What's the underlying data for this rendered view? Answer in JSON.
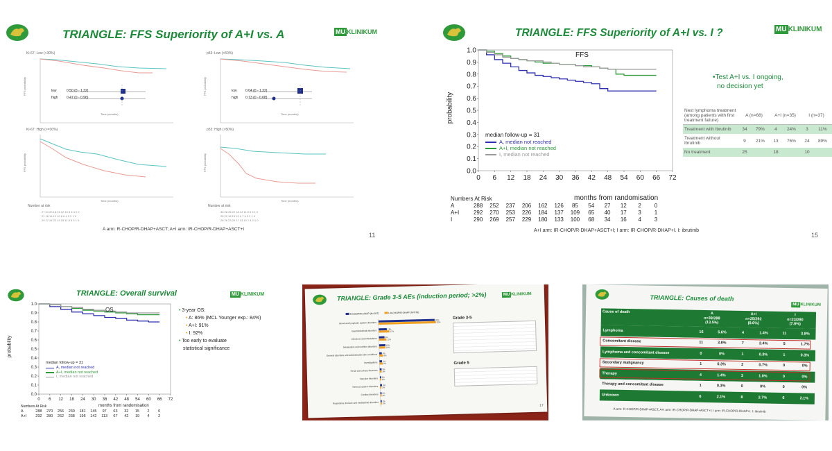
{
  "colors": {
    "green": "#2f9a3a",
    "title_green": "#1d8a3a",
    "blue": "#2d2fb0",
    "grey": "#9a9a9a",
    "teal": "#5bc4c0",
    "salmon": "#e89a94",
    "navy": "#1f2f8a",
    "orange": "#f0a020",
    "red_box": "#c0302a",
    "table_green": "#1e7a32"
  },
  "icons": {
    "logo": "lion-crest-icon",
    "klinikum": "mu-klinikum-logo"
  },
  "klinikum_logo": {
    "mu": "MU",
    "name": "KLINIKUM"
  },
  "slide1": {
    "title_italic": "TRIANGLE:",
    "title_rest": " FFS Superiority of A+I vs. A",
    "panel_tl": "Ki-67: Low (<30%)",
    "panel_tr": "p53: Low (<50%)",
    "panel_bl": "Ki-67: High (>=30%)",
    "panel_br": "p53: High (>50%)",
    "forest_rows": [
      {
        "label": "low",
        "value": "0.50 (0 - 1.32)"
      },
      {
        "label": "high",
        "value": "0.47 (0 - 0.96)"
      }
    ],
    "forest_rows_r": [
      {
        "label": "low",
        "value": "0.04 (0 - 1.32)"
      },
      {
        "label": "high",
        "value": "0.13 (0 - 0.68)"
      }
    ],
    "ylabel": "FFS probability",
    "xlabel": "Time (months)",
    "at_risk": "Number at risk",
    "footnote": "A arm: R-CHOP/R-DHAP+ASCT; A+I arm: IR-CHOP/R-DHAP+ASCT+I",
    "page": "11"
  },
  "slide2": {
    "title_italic": "TRIANGLE:",
    "title_rest": " FFS Superiority of A+I vs. I ?",
    "bullet": "Test A+I vs. I ongoing,",
    "bullet2": "no decision yet",
    "ylabel": "probability",
    "xlabel": "months from randomisation",
    "follow_up": "median follow-up = 31",
    "at_risk_header": "Numbers At Risk",
    "page": "15",
    "footnote": "A+I arm: IR-CHOP/R-DHAP+ASCT+I; I arm: IR-CHOP/R-DHAP+I. I: ibrutinib",
    "at_risk_rows": [
      {
        "arm": "A",
        "values": [
          "288",
          "252",
          "237",
          "206",
          "162",
          "126",
          "85",
          "54",
          "27",
          "12",
          "2",
          "0"
        ]
      },
      {
        "arm": "A+I",
        "values": [
          "292",
          "270",
          "253",
          "226",
          "184",
          "137",
          "109",
          "65",
          "40",
          "17",
          "3",
          "1"
        ]
      },
      {
        "arm": "I",
        "values": [
          "290",
          "269",
          "257",
          "229",
          "180",
          "133",
          "100",
          "68",
          "34",
          "16",
          "4",
          "3"
        ]
      }
    ],
    "table": {
      "header": [
        "Next lymphoma treatment (among patients with first treatment failure)",
        "A (n=68)",
        "A+I (n=35)",
        "I (n=37)"
      ],
      "rows": [
        {
          "label": "Treatment with Ibrutinib",
          "a": "34",
          "ap": "79%",
          "ai": "4",
          "aip": "24%",
          "i": "3",
          "ip": "11%",
          "shade": true
        },
        {
          "label": "Treatment without Ibrutinib",
          "a": "9",
          "ap": "21%",
          "ai": "13",
          "aip": "76%",
          "i": "24",
          "ip": "89%",
          "shade": false
        },
        {
          "label": "No treatment",
          "a": "25",
          "ap": "",
          "ai": "18",
          "aip": "",
          "i": "10",
          "ip": "",
          "shade": true
        }
      ]
    }
  },
  "slide3": {
    "title_italic": "TRIANGLE:",
    "title_rest": " Overall survival",
    "os_label": "OS",
    "ylabel": "probability",
    "xlabel": "months from randomisation",
    "follow_up": "median follow-up = 31",
    "at_risk_header": "Numbers At Risk",
    "bullets": [
      {
        "text": "3-year OS:",
        "level": 0
      },
      {
        "text": "A: 86% (MCL Younger exp.: 84%)",
        "level": 1
      },
      {
        "text": "A+I: 91%",
        "level": 1
      },
      {
        "text": "I: 92%",
        "level": 1
      },
      {
        "text": "Too early to evaluate",
        "level": 0
      },
      {
        "text": "statistical significance",
        "level": 2
      }
    ],
    "at_risk_rows": [
      {
        "arm": "A",
        "values": [
          "288",
          "270",
          "256",
          "230",
          "181",
          "145",
          "97",
          "63",
          "32",
          "15",
          "2",
          "0"
        ]
      },
      {
        "arm": "A+I",
        "values": [
          "292",
          "280",
          "262",
          "238",
          "195",
          "142",
          "113",
          "67",
          "42",
          "19",
          "4",
          "2"
        ]
      }
    ]
  },
  "slide4": {
    "title_italic": "TRIANGLE:",
    "title_rest": " Grade 3-5 AEs (induction period; >2%)",
    "legend": [
      "R-CHOP/R-DHAP (N=287)",
      "I-R-CHOP/R-DHAP (N=578)"
    ],
    "grade35": "Grade 3-5",
    "grade5": "Grade 5",
    "page": "17"
  },
  "slide5": {
    "title_italic": "TRIANGLE:",
    "title_rest": " Causes of death",
    "footnote": "A arm: R-CHOP/R-DHAP+ASCT; A+I arm: IR-CHOP/R-DHAP+ASCT+I; I arm: IR-CHOP/R-DHAP+I. I: ibrutinib",
    "header": {
      "cause": "Cause of death",
      "a": "A",
      "a_n": "n=39/288",
      "a_p": "(13.5%)",
      "ai": "A+I",
      "ai_n": "n=25/292",
      "ai_p": "(8.6%)",
      "i": "I",
      "i_n": "n=23/290",
      "i_p": "(7.9%)"
    },
    "rows": [
      {
        "cause": "Lymphoma",
        "vals": [
          "16",
          "5.6%",
          "4",
          "1.4%",
          "11",
          "3.8%"
        ],
        "boxed": false
      },
      {
        "cause": "Concomitant disease",
        "vals": [
          "11",
          "3.8%",
          "7",
          "2.4%",
          "5",
          "1.7%"
        ],
        "boxed": true
      },
      {
        "cause": "Lymphoma and concomitant disease",
        "vals": [
          "0",
          "0%",
          "1",
          "0.3%",
          "1",
          "0.3%"
        ],
        "boxed": false
      },
      {
        "cause": "Secondary malignancy",
        "vals": [
          "1",
          "0.3%",
          "2",
          "0.7%",
          "0",
          "0%"
        ],
        "boxed": true
      },
      {
        "cause": "Therapy",
        "vals": [
          "4",
          "1.4%",
          "3",
          "1.0%",
          "0",
          "0%"
        ],
        "boxed": true
      },
      {
        "cause": "Therapy and concomitant disease",
        "vals": [
          "1",
          "0.3%",
          "0",
          "0%",
          "0",
          "0%"
        ],
        "boxed": false
      },
      {
        "cause": "Unknown",
        "vals": [
          "6",
          "2.1%",
          "8",
          "2.7%",
          "6",
          "2.1%"
        ],
        "boxed": false
      }
    ]
  },
  "chart_data": [
    {
      "type": "line",
      "id": "slide2-ffs",
      "title": "FFS",
      "xlabel": "months from randomisation",
      "ylabel": "probability",
      "xlim": [
        0,
        72
      ],
      "ylim": [
        0,
        1
      ],
      "xticks": [
        "0",
        "6",
        "12",
        "18",
        "24",
        "30",
        "36",
        "42",
        "48",
        "54",
        "60",
        "66",
        "72"
      ],
      "yticks": [
        "0.0",
        "0.1",
        "0.2",
        "0.3",
        "0.4",
        "0.5",
        "0.6",
        "0.7",
        "0.8",
        "0.9",
        "1.0"
      ],
      "series": [
        {
          "name": "A, median not reached",
          "color": "#2d2fb0",
          "x": [
            0,
            3,
            6,
            9,
            12,
            15,
            18,
            21,
            24,
            27,
            30,
            33,
            36,
            39,
            42,
            45,
            48,
            51,
            54,
            57,
            60,
            63,
            66
          ],
          "y": [
            1.0,
            0.96,
            0.92,
            0.89,
            0.86,
            0.83,
            0.81,
            0.79,
            0.78,
            0.77,
            0.76,
            0.75,
            0.74,
            0.73,
            0.72,
            0.68,
            0.66,
            0.66,
            0.66,
            0.66,
            0.66,
            0.66,
            0.66
          ]
        },
        {
          "name": "A+I, median not reached",
          "color": "#2f9a3a",
          "x": [
            0,
            3,
            6,
            9,
            12,
            15,
            18,
            21,
            24,
            27,
            30,
            33,
            36,
            39,
            42,
            45,
            48,
            51,
            54,
            57,
            60,
            63,
            66
          ],
          "y": [
            1.0,
            0.99,
            0.97,
            0.95,
            0.93,
            0.92,
            0.91,
            0.9,
            0.89,
            0.89,
            0.88,
            0.88,
            0.87,
            0.87,
            0.86,
            0.85,
            0.84,
            0.8,
            0.79,
            0.79,
            0.79,
            0.79,
            0.79
          ]
        },
        {
          "name": "I, median not reached",
          "color": "#9a9a9a",
          "x": [
            0,
            3,
            6,
            9,
            12,
            15,
            18,
            21,
            24,
            27,
            30,
            33,
            36,
            39,
            42,
            45,
            48,
            51,
            54,
            57,
            60,
            63,
            66
          ],
          "y": [
            1.0,
            0.98,
            0.96,
            0.94,
            0.93,
            0.92,
            0.91,
            0.91,
            0.9,
            0.89,
            0.88,
            0.88,
            0.87,
            0.86,
            0.86,
            0.85,
            0.84,
            0.84,
            0.84,
            0.84,
            0.84,
            0.84,
            0.84
          ]
        }
      ]
    },
    {
      "type": "line",
      "id": "slide3-os",
      "title": "OS",
      "xlabel": "months from randomisation",
      "ylabel": "probability",
      "xlim": [
        0,
        72
      ],
      "ylim": [
        0,
        1
      ],
      "xticks": [
        "0",
        "6",
        "12",
        "18",
        "24",
        "30",
        "36",
        "42",
        "48",
        "54",
        "60",
        "66",
        "72"
      ],
      "yticks": [
        "0.0",
        "0.1",
        "0.2",
        "0.3",
        "0.4",
        "0.5",
        "0.6",
        "0.7",
        "0.8",
        "0.9",
        "1.0"
      ],
      "series": [
        {
          "name": "A, median not reached",
          "color": "#2d2fb0",
          "x": [
            0,
            6,
            12,
            18,
            24,
            30,
            36,
            42,
            48,
            54,
            60,
            66
          ],
          "y": [
            1.0,
            0.97,
            0.94,
            0.91,
            0.89,
            0.87,
            0.85,
            0.84,
            0.82,
            0.81,
            0.8,
            0.8
          ]
        },
        {
          "name": "A+I, median not reached",
          "color": "#2f9a3a",
          "x": [
            0,
            6,
            12,
            18,
            24,
            30,
            36,
            42,
            48,
            54,
            60,
            66
          ],
          "y": [
            1.0,
            0.99,
            0.97,
            0.95,
            0.93,
            0.92,
            0.91,
            0.9,
            0.89,
            0.88,
            0.88,
            0.88
          ]
        },
        {
          "name": "I, median not reached",
          "color": "#9a9a9a",
          "x": [
            0,
            6,
            12,
            18,
            24,
            30,
            36,
            42,
            48,
            54,
            60,
            66
          ],
          "y": [
            1.0,
            0.99,
            0.97,
            0.96,
            0.94,
            0.93,
            0.92,
            0.91,
            0.9,
            0.9,
            0.9,
            0.9
          ]
        }
      ]
    },
    {
      "type": "bar",
      "id": "slide4-aes",
      "orientation": "horizontal",
      "categories": [
        "Blood and lymphatic system disorders",
        "Gastrointestinal disorders",
        "Infections and infestations",
        "Metabolism and nutrition disorders",
        "General disorders and administration site conditions",
        "Investigations",
        "Renal and urinary disorders",
        "Vascular disorders",
        "Nervous system disorders",
        "Cardiac disorders",
        "Respiratory, thoracic and mediastinal disorders"
      ],
      "series": [
        {
          "name": "R-CHOP/R-DHAP (N=287)",
          "color": "#1f2f8a",
          "values": [
            90,
            13,
            9,
            10,
            4,
            4,
            3,
            2,
            3,
            2,
            2
          ]
        },
        {
          "name": "I-R-CHOP/R-DHAP (N=578)",
          "color": "#f0a020",
          "values": [
            92,
            17,
            12,
            10,
            6,
            5,
            3,
            2,
            2,
            2,
            2
          ]
        }
      ],
      "xlim": [
        0,
        100
      ]
    }
  ]
}
